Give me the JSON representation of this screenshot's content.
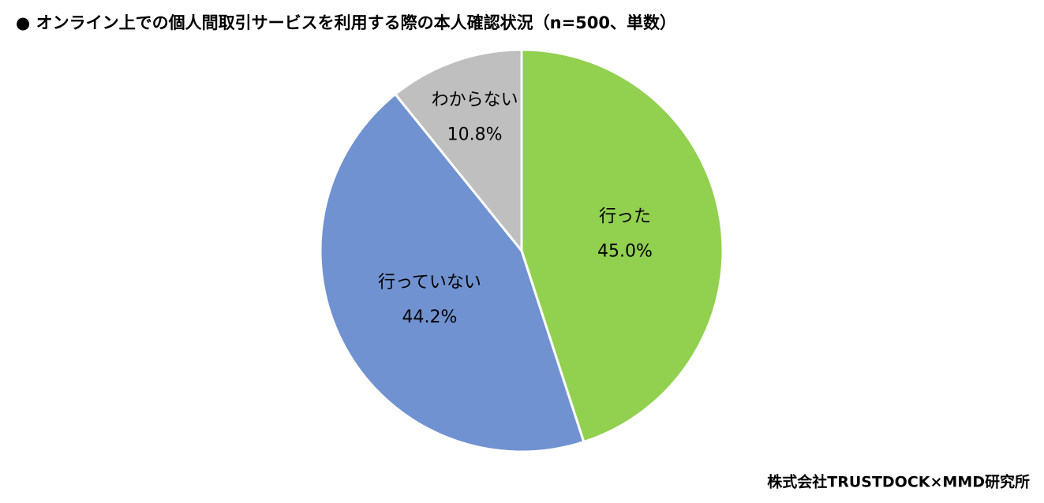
{
  "chart_data": {
    "type": "pie",
    "title": "● オンライン上での個人間取引サービスを利用する際の本人確認状況（n=500、単数）",
    "categories": [
      "行った",
      "行っていない",
      "わからない"
    ],
    "values": [
      45.0,
      44.2,
      10.8
    ],
    "value_labels": [
      "45.0%",
      "44.2%",
      "10.8%"
    ],
    "colors": [
      "#92d050",
      "#7092d0",
      "#bfbfbf"
    ],
    "source": "株式会社TRUSTDOCK×MMD研究所"
  }
}
